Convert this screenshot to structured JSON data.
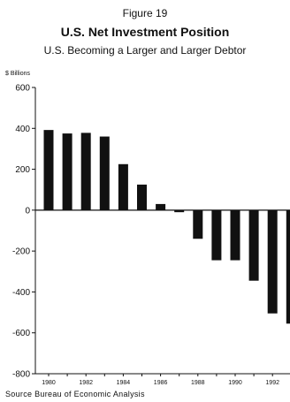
{
  "figure_label": "Figure 19",
  "chart_data": {
    "type": "bar",
    "title": "U.S. Net Investment Position",
    "subtitle": "U.S. Becoming a Larger and Larger Debtor",
    "ylabel": "$ Billions",
    "xlabel": "",
    "ylim": [
      -800,
      600
    ],
    "yticks": [
      600,
      400,
      200,
      0,
      -200,
      -400,
      -600,
      -800
    ],
    "categories": [
      "1980",
      "1981",
      "1982",
      "1983",
      "1984",
      "1985",
      "1986",
      "1987",
      "1988",
      "1989",
      "1990",
      "1991",
      "1992",
      "1993"
    ],
    "x_tick_labels": [
      "1980",
      "1982",
      "1984",
      "1986",
      "1988",
      "1990",
      "1992"
    ],
    "values": [
      392,
      375,
      378,
      360,
      225,
      125,
      30,
      -10,
      -140,
      -245,
      -245,
      -345,
      -505,
      -555
    ],
    "series": [
      {
        "name": "",
        "values": [
          392,
          375,
          378,
          360,
          225,
          125,
          30,
          -10,
          -140,
          -245,
          -245,
          -345,
          -505,
          -555
        ]
      }
    ],
    "grid": false,
    "bar_color": "#111111",
    "source": "Source Bureau of Economic Analysis"
  }
}
